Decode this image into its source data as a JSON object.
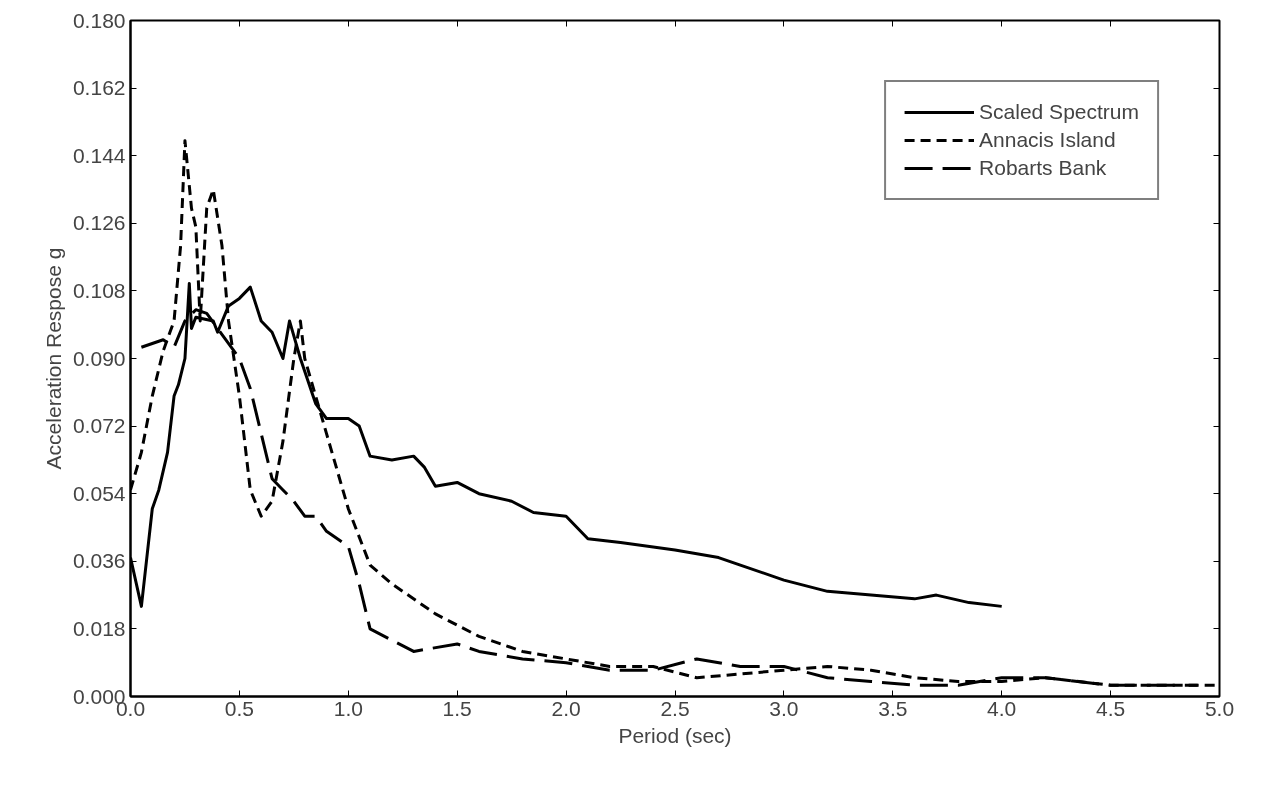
{
  "chart_data": {
    "type": "line",
    "xlabel": "Period (sec)",
    "ylabel": "Acceleration Respose g",
    "xlim": [
      0,
      5
    ],
    "ylim": [
      0,
      0.18
    ],
    "xticks": [
      {
        "value": 0,
        "label": "0.0"
      },
      {
        "value": 0.5,
        "label": "0.5"
      },
      {
        "value": 1,
        "label": "1.0"
      },
      {
        "value": 1.5,
        "label": "1.5"
      },
      {
        "value": 2,
        "label": "2.0"
      },
      {
        "value": 2.5,
        "label": "2.5"
      },
      {
        "value": 3,
        "label": "3.0"
      },
      {
        "value": 3.5,
        "label": "3.5"
      },
      {
        "value": 4,
        "label": "4.0"
      },
      {
        "value": 4.5,
        "label": "4.5"
      },
      {
        "value": 5,
        "label": "5.0"
      }
    ],
    "yticks": [
      {
        "value": 0,
        "label": "0.000"
      },
      {
        "value": 0.018,
        "label": "0.018"
      },
      {
        "value": 0.036,
        "label": "0.036"
      },
      {
        "value": 0.054,
        "label": "0.054"
      },
      {
        "value": 0.072,
        "label": "0.072"
      },
      {
        "value": 0.09,
        "label": "0.090"
      },
      {
        "value": 0.108,
        "label": "0.108"
      },
      {
        "value": 0.126,
        "label": "0.126"
      },
      {
        "value": 0.144,
        "label": "0.144"
      },
      {
        "value": 0.162,
        "label": "0.162"
      },
      {
        "value": 0.18,
        "label": "0.180"
      }
    ],
    "grid": false,
    "legend": "top right",
    "series": [
      {
        "name": "Scaled Spectrum",
        "color": "#000000",
        "line_style": "solid",
        "x": [
          0,
          0.05,
          0.1,
          0.13,
          0.17,
          0.2,
          0.22,
          0.25,
          0.27,
          0.28,
          0.3,
          0.38,
          0.4,
          0.45,
          0.5,
          0.55,
          0.6,
          0.65,
          0.7,
          0.73,
          0.78,
          0.85,
          0.9,
          1.0,
          1.05,
          1.1,
          1.2,
          1.3,
          1.35,
          1.4,
          1.5,
          1.6,
          1.75,
          1.85,
          2.0,
          2.1,
          2.25,
          2.5,
          2.7,
          2.8,
          3.0,
          3.2,
          3.4,
          3.6,
          3.7,
          3.85,
          4.0
        ],
        "values": [
          0.037,
          0.024,
          0.05,
          0.055,
          0.065,
          0.08,
          0.083,
          0.09,
          0.11,
          0.098,
          0.101,
          0.1,
          0.097,
          0.104,
          0.106,
          0.109,
          0.1,
          0.097,
          0.09,
          0.1,
          0.09,
          0.078,
          0.074,
          0.074,
          0.072,
          0.064,
          0.063,
          0.064,
          0.061,
          0.056,
          0.057,
          0.054,
          0.052,
          0.049,
          0.048,
          0.042,
          0.041,
          0.039,
          0.037,
          0.035,
          0.031,
          0.028,
          0.027,
          0.026,
          0.027,
          0.025,
          0.024
        ]
      },
      {
        "name": "Annacis Island",
        "color": "#000000",
        "line_style": "dashed",
        "x": [
          0,
          0.05,
          0.1,
          0.15,
          0.2,
          0.23,
          0.25,
          0.28,
          0.3,
          0.32,
          0.35,
          0.38,
          0.42,
          0.45,
          0.5,
          0.55,
          0.6,
          0.65,
          0.7,
          0.75,
          0.78,
          0.8,
          0.9,
          1.0,
          1.1,
          1.2,
          1.4,
          1.6,
          1.8,
          2.0,
          2.2,
          2.4,
          2.6,
          2.8,
          3.0,
          3.2,
          3.4,
          3.6,
          3.8,
          4.0,
          4.2,
          4.5,
          5.0
        ],
        "values": [
          0.055,
          0.065,
          0.08,
          0.092,
          0.1,
          0.12,
          0.148,
          0.13,
          0.125,
          0.1,
          0.13,
          0.135,
          0.12,
          0.1,
          0.08,
          0.055,
          0.048,
          0.052,
          0.068,
          0.09,
          0.1,
          0.09,
          0.07,
          0.05,
          0.035,
          0.03,
          0.022,
          0.016,
          0.012,
          0.01,
          0.008,
          0.008,
          0.005,
          0.006,
          0.007,
          0.008,
          0.007,
          0.005,
          0.004,
          0.004,
          0.005,
          0.003,
          0.003
        ]
      },
      {
        "name": "Robarts Bank",
        "color": "#000000",
        "line_style": "longdash",
        "x": [
          0.05,
          0.1,
          0.15,
          0.2,
          0.25,
          0.3,
          0.35,
          0.4,
          0.5,
          0.55,
          0.6,
          0.65,
          0.7,
          0.75,
          0.8,
          0.85,
          0.9,
          1.0,
          1.05,
          1.1,
          1.2,
          1.3,
          1.5,
          1.6,
          1.8,
          2.0,
          2.2,
          2.4,
          2.6,
          2.8,
          3.0,
          3.2,
          3.4,
          3.6,
          3.8,
          4.0,
          4.2,
          4.5,
          4.9
        ],
        "values": [
          0.093,
          0.094,
          0.095,
          0.093,
          0.1,
          0.103,
          0.102,
          0.098,
          0.09,
          0.082,
          0.07,
          0.058,
          0.055,
          0.052,
          0.048,
          0.048,
          0.044,
          0.04,
          0.03,
          0.018,
          0.015,
          0.012,
          0.014,
          0.012,
          0.01,
          0.009,
          0.007,
          0.007,
          0.01,
          0.008,
          0.008,
          0.005,
          0.004,
          0.003,
          0.003,
          0.005,
          0.005,
          0.003,
          0.003
        ]
      }
    ]
  }
}
